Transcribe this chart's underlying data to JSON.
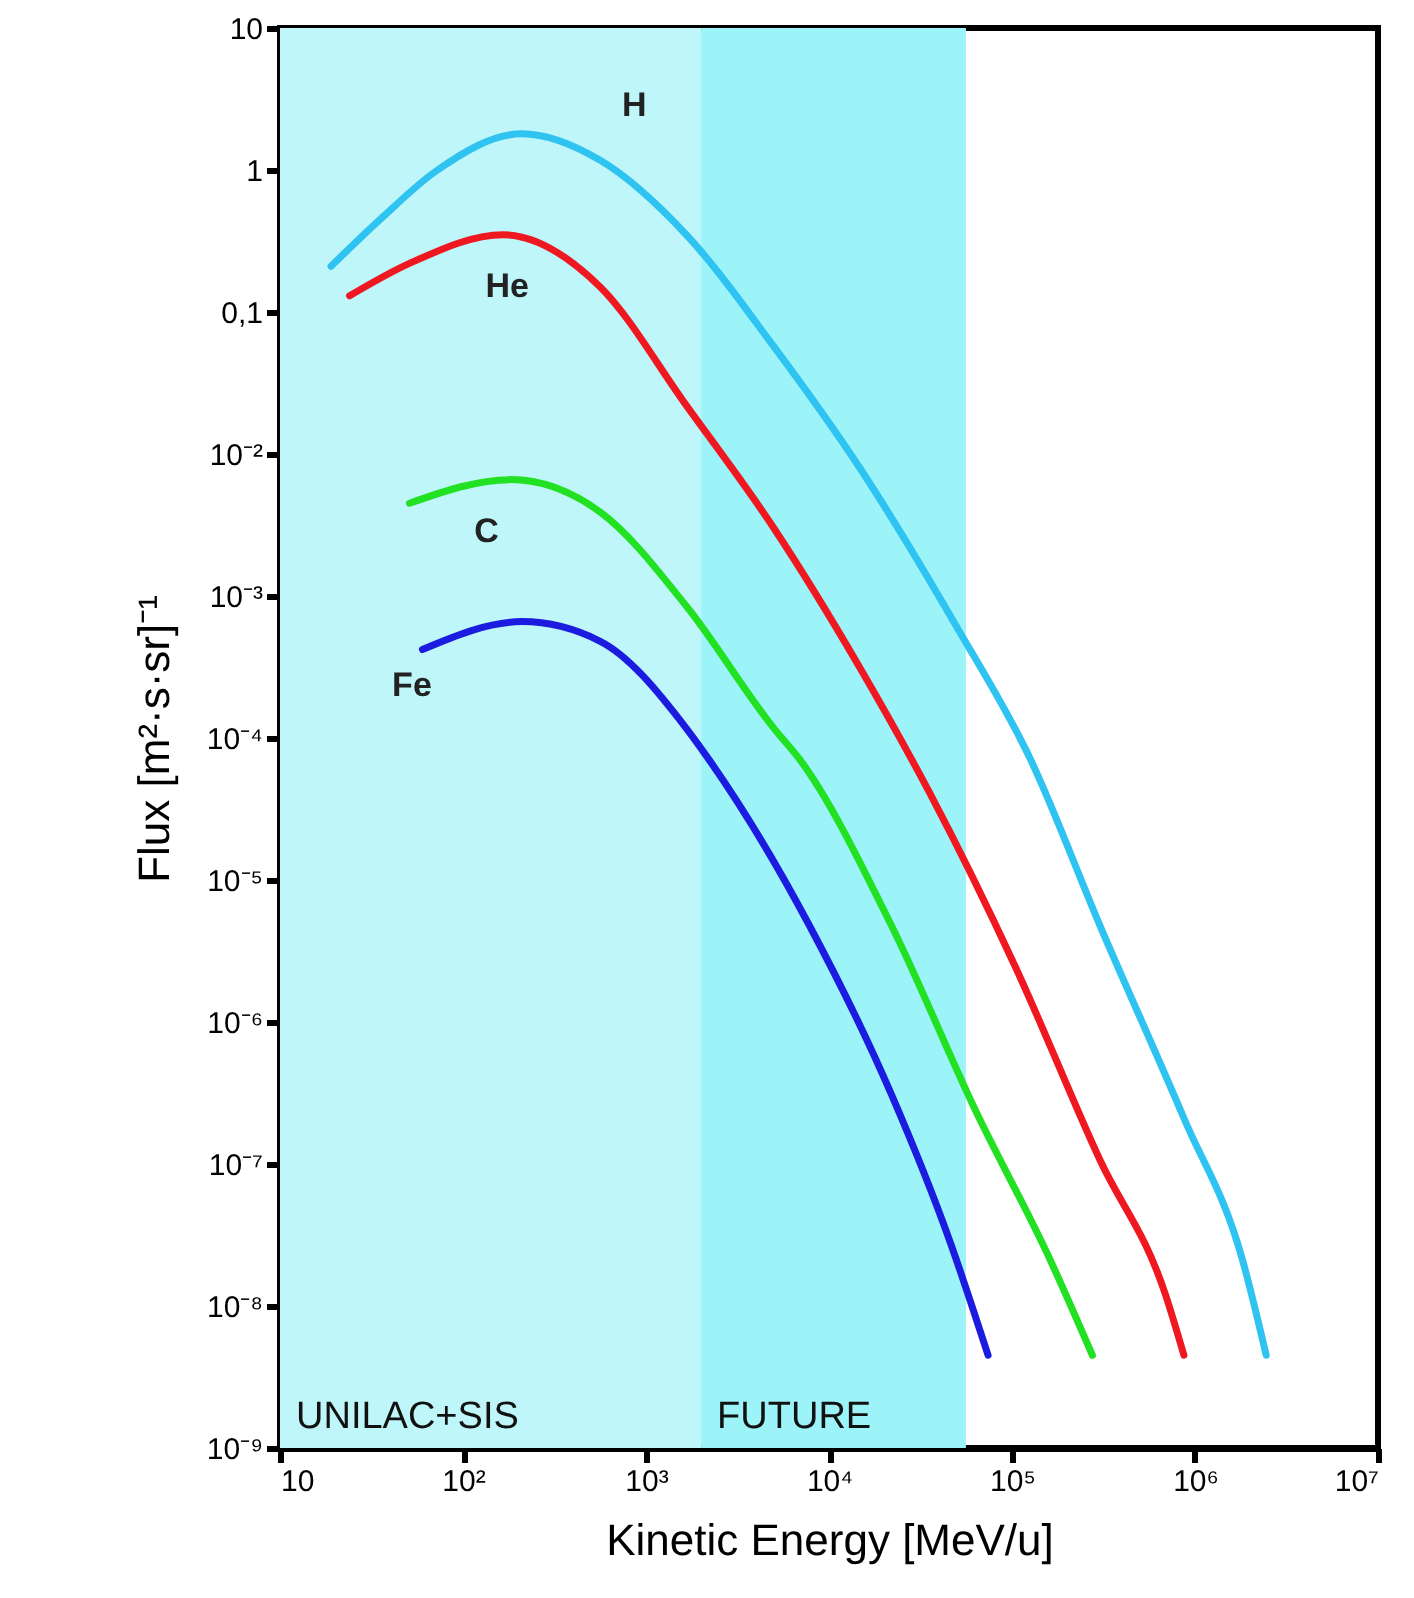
{
  "chart_data": {
    "type": "line",
    "xlabel": "Kinetic Energy [MeV/u]",
    "ylabel": "Flux [m²·s·sr]⁻¹",
    "log": "xy",
    "grid": false,
    "marker": "none",
    "line_style": "solid",
    "xlim": [
      10,
      10000000
    ],
    "ylim": [
      1e-09,
      10
    ],
    "xticks": [
      {
        "value": 10,
        "label": "10"
      },
      {
        "value": 100,
        "label": "10²"
      },
      {
        "value": 1000,
        "label": "10³"
      },
      {
        "value": 10000,
        "label": "10⁴"
      },
      {
        "value": 100000,
        "label": "10⁵"
      },
      {
        "value": 1000000,
        "label": "10⁶"
      },
      {
        "value": 10000000,
        "label": "10⁷"
      }
    ],
    "yticks": [
      {
        "value": 1e-09,
        "label": "10⁻⁹"
      },
      {
        "value": 1e-08,
        "label": "10⁻⁸"
      },
      {
        "value": 1e-07,
        "label": "10⁻⁷"
      },
      {
        "value": 1e-06,
        "label": "10⁻⁶"
      },
      {
        "value": 1e-05,
        "label": "10⁻⁵"
      },
      {
        "value": 0.0001,
        "label": "10⁻⁴"
      },
      {
        "value": 0.001,
        "label": "10⁻³"
      },
      {
        "value": 0.01,
        "label": "10⁻²"
      },
      {
        "value": 0.1,
        "label": "0,1"
      },
      {
        "value": 1,
        "label": "1"
      },
      {
        "value": 10,
        "label": "10"
      }
    ],
    "bands": [
      {
        "axis": "x",
        "from": 10,
        "to": 2000,
        "label": "UNILAC+SIS",
        "color": "#bff6f9"
      },
      {
        "axis": "x",
        "from": 2000,
        "to": 56000,
        "label": "FUTURE",
        "color": "#9cf3f8"
      }
    ],
    "series": [
      {
        "name": "H",
        "color": "#2ec3f0",
        "x": [
          19,
          36,
          71,
          210,
          562,
          1660,
          5000,
          14800,
          49000,
          126000,
          302000,
          870000,
          1820000,
          2450000
        ],
        "values": [
          0.21,
          0.46,
          0.98,
          1.8,
          1.17,
          0.35,
          0.057,
          0.0079,
          0.00063,
          7.1e-05,
          4.8e-06,
          2.1e-07,
          2.1e-08,
          4.5e-09
        ]
      },
      {
        "name": "He",
        "color": "#f01820",
        "x": [
          24,
          51,
          166,
          562,
          1660,
          5000,
          14800,
          35500,
          105000,
          302000,
          690000,
          870000
        ],
        "values": [
          0.13,
          0.22,
          0.35,
          0.15,
          0.022,
          0.003,
          0.00031,
          4.1e-05,
          2.4e-06,
          1.07e-07,
          1.2e-08,
          4.5e-09
        ]
      },
      {
        "name": "C",
        "color": "#22e022",
        "x": [
          51,
          182,
          562,
          1660,
          5000,
          6900,
          21900,
          63000,
          162000,
          275000
        ],
        "values": [
          0.0045,
          0.0066,
          0.0039,
          0.00085,
          0.000117,
          7.1e-05,
          4.8e-06,
          2.4e-07,
          2.1e-08,
          4.5e-09
        ]
      },
      {
        "name": "Fe",
        "color": "#1c1ce0",
        "x": [
          60,
          210,
          562,
          1660,
          2200,
          7800,
          21900,
          46000,
          74000
        ],
        "values": [
          0.00042,
          0.00066,
          0.00048,
          0.000117,
          7.1e-05,
          4.8e-06,
          3.1e-07,
          2.8e-08,
          4.5e-09
        ]
      }
    ]
  }
}
